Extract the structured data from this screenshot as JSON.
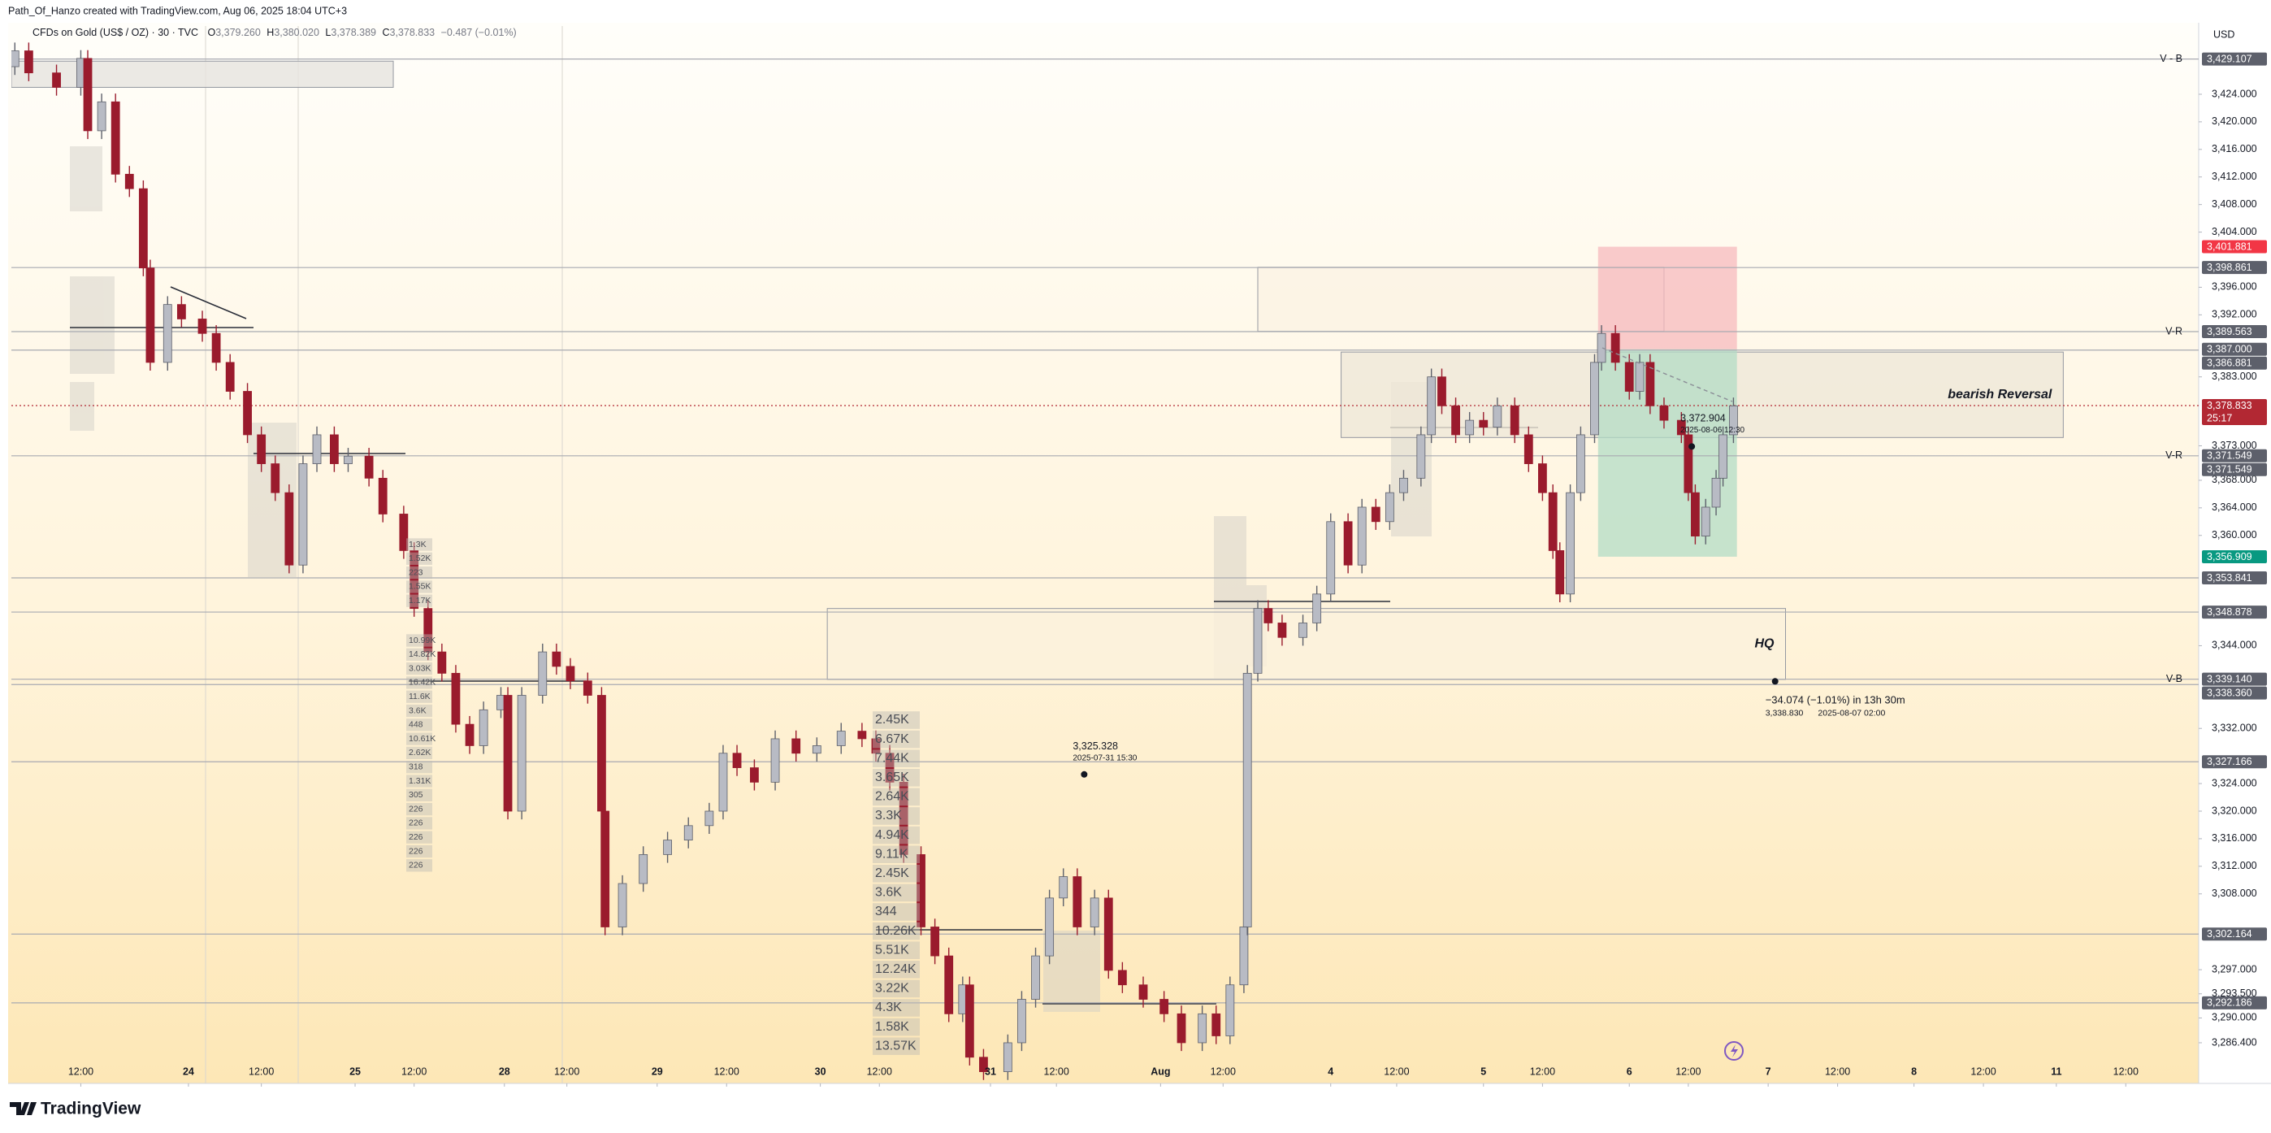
{
  "header": {
    "credit": "Path_Of_Hanzo created with TradingView.com, Aug 06, 2025 18:04 UTC+3",
    "symbol": "CFDs on Gold (US$ / OZ) · 30 · TVC",
    "ohlc": [
      {
        "key": "O",
        "value": "3,379.260"
      },
      {
        "key": "H",
        "value": "3,380.020"
      },
      {
        "key": "L",
        "value": "3,378.389"
      },
      {
        "key": "C",
        "value": "3,378.833"
      }
    ],
    "change": "−0.487 (−0.01%)"
  },
  "chart_data": {
    "type": "candlestick",
    "currency": "USD",
    "up_color": "#b8bbc4",
    "down_color": "#9a1b2d",
    "wick_color": "#5d606b",
    "x": [
      1,
      5,
      13,
      20,
      22,
      26,
      30,
      34,
      38,
      40,
      45,
      49,
      55,
      59,
      63,
      68,
      72,
      76,
      80,
      84,
      88,
      93,
      97,
      103,
      107,
      113,
      116,
      120,
      124,
      128,
      132,
      136,
      141,
      143,
      147,
      153,
      157,
      161,
      166,
      170,
      171,
      176,
      182,
      189,
      195,
      201,
      205,
      209,
      214,
      220,
      226,
      232,
      239,
      245,
      249,
      253,
      257,
      262,
      266,
      270,
      274,
      276,
      280,
      287,
      291,
      295,
      299,
      303,
      307,
      312,
      316,
      320,
      326,
      332,
      337,
      343,
      347,
      351,
      355,
      356,
      359,
      362,
      366,
      372,
      376,
      380,
      385,
      389,
      393,
      397,
      401,
      406,
      409,
      412,
      416,
      420,
      424,
      428,
      433,
      437,
      441,
      444,
      446,
      449,
      452,
      456,
      458,
      462,
      466,
      469,
      472,
      476,
      481,
      483,
      485,
      488,
      491,
      493,
      496
    ],
    "open": [
      3428.0,
      3430.3,
      3427.1,
      3425.0,
      3429.2,
      3418.7,
      3422.9,
      3412.4,
      3410.3,
      3398.8,
      3385.1,
      3393.5,
      3391.4,
      3389.3,
      3385.1,
      3380.9,
      3374.6,
      3370.4,
      3366.2,
      3355.7,
      3370.4,
      3374.6,
      3370.4,
      3371.5,
      3368.3,
      3363.1,
      3357.8,
      3349.4,
      3343.1,
      3340.0,
      3332.6,
      3329.5,
      3334.7,
      3336.8,
      3320.0,
      3336.8,
      3343.1,
      3341.0,
      3338.9,
      3336.8,
      3320.0,
      3303.2,
      3309.5,
      3313.7,
      3315.8,
      3317.9,
      3320.0,
      3328.4,
      3326.3,
      3324.2,
      3330.5,
      3328.4,
      3329.5,
      3331.6,
      3330.5,
      3328.4,
      3324.2,
      3313.7,
      3303.2,
      3299.0,
      3290.6,
      3294.8,
      3284.3,
      3282.2,
      3286.4,
      3292.7,
      3299.0,
      3307.4,
      3310.5,
      3303.2,
      3307.4,
      3296.9,
      3294.8,
      3292.7,
      3290.6,
      3286.4,
      3290.6,
      3287.4,
      3294.8,
      3303.2,
      3340.0,
      3349.4,
      3347.3,
      3345.2,
      3347.3,
      3351.5,
      3362.0,
      3355.7,
      3364.1,
      3362.0,
      3366.2,
      3368.3,
      3374.6,
      3383.0,
      3378.8,
      3374.6,
      3376.7,
      3375.7,
      3378.8,
      3374.6,
      3370.4,
      3366.2,
      3357.8,
      3351.5,
      3366.2,
      3374.6,
      3385.1,
      3389.3,
      3385.1,
      3380.9,
      3385.1,
      3378.8,
      3376.7,
      3374.6,
      3366.2,
      3359.9,
      3364.1,
      3368.3,
      3374.6
    ],
    "high": [
      3431.5,
      3431.5,
      3428.3,
      3430.4,
      3430.4,
      3424.1,
      3424.1,
      3413.6,
      3411.5,
      3400.0,
      3394.7,
      3394.7,
      3392.6,
      3390.5,
      3386.3,
      3382.1,
      3375.8,
      3371.6,
      3367.4,
      3371.6,
      3375.8,
      3375.8,
      3372.7,
      3372.7,
      3369.5,
      3364.3,
      3359.0,
      3350.6,
      3344.3,
      3341.2,
      3333.8,
      3335.9,
      3338.0,
      3338.0,
      3338.0,
      3344.3,
      3344.3,
      3342.2,
      3340.1,
      3338.0,
      3321.2,
      3310.7,
      3314.9,
      3317.0,
      3319.1,
      3321.2,
      3329.6,
      3329.6,
      3327.5,
      3331.7,
      3331.7,
      3330.7,
      3332.8,
      3332.8,
      3331.7,
      3329.6,
      3325.4,
      3314.9,
      3304.4,
      3300.2,
      3296.0,
      3296.0,
      3285.5,
      3287.6,
      3293.9,
      3300.2,
      3308.6,
      3311.7,
      3311.7,
      3308.6,
      3308.6,
      3298.1,
      3296.0,
      3293.9,
      3291.8,
      3291.8,
      3291.8,
      3296.0,
      3304.4,
      3341.2,
      3350.6,
      3350.6,
      3348.5,
      3348.5,
      3352.7,
      3363.2,
      3363.2,
      3365.3,
      3365.3,
      3367.4,
      3369.5,
      3375.8,
      3384.2,
      3384.2,
      3380.0,
      3377.9,
      3377.9,
      3380.0,
      3380.0,
      3375.8,
      3371.6,
      3367.4,
      3359.0,
      3367.4,
      3375.8,
      3386.3,
      3390.5,
      3390.5,
      3386.3,
      3386.3,
      3386.3,
      3380.0,
      3377.9,
      3375.8,
      3367.4,
      3365.3,
      3369.5,
      3375.8,
      3380.0
    ],
    "low": [
      3426.8,
      3425.9,
      3423.8,
      3423.8,
      3417.5,
      3417.5,
      3411.2,
      3409.1,
      3397.6,
      3383.9,
      3383.9,
      3390.2,
      3388.1,
      3383.9,
      3379.7,
      3373.4,
      3369.2,
      3365.0,
      3354.5,
      3354.5,
      3369.2,
      3369.2,
      3369.2,
      3367.1,
      3361.9,
      3356.6,
      3348.2,
      3341.9,
      3338.8,
      3331.4,
      3328.3,
      3328.3,
      3333.5,
      3318.8,
      3318.8,
      3335.6,
      3339.8,
      3337.7,
      3335.6,
      3318.8,
      3302.0,
      3302.0,
      3308.3,
      3312.5,
      3314.6,
      3316.7,
      3318.8,
      3325.1,
      3323.0,
      3323.0,
      3327.2,
      3327.2,
      3328.3,
      3329.3,
      3327.2,
      3323.0,
      3312.5,
      3302.0,
      3297.8,
      3289.4,
      3289.4,
      3283.1,
      3281.0,
      3281.0,
      3285.2,
      3291.5,
      3297.8,
      3306.2,
      3302.0,
      3302.0,
      3295.7,
      3293.6,
      3291.5,
      3289.4,
      3285.2,
      3285.2,
      3286.2,
      3286.2,
      3293.6,
      3302.0,
      3338.8,
      3346.1,
      3344.0,
      3344.0,
      3346.1,
      3350.3,
      3354.5,
      3354.5,
      3360.8,
      3360.8,
      3365.0,
      3367.1,
      3373.4,
      3377.6,
      3373.4,
      3373.4,
      3374.5,
      3374.5,
      3373.4,
      3369.2,
      3365.0,
      3356.6,
      3350.3,
      3350.3,
      3365.0,
      3373.4,
      3383.9,
      3383.9,
      3379.7,
      3379.7,
      3377.6,
      3375.5,
      3373.4,
      3365.0,
      3358.7,
      3358.7,
      3362.9,
      3367.1,
      3373.4
    ],
    "close": [
      3430.3,
      3427.1,
      3425.0,
      3429.2,
      3418.7,
      3422.9,
      3412.4,
      3410.3,
      3398.8,
      3385.1,
      3393.5,
      3391.4,
      3389.3,
      3385.1,
      3380.9,
      3374.6,
      3370.4,
      3366.2,
      3355.7,
      3370.4,
      3374.6,
      3370.4,
      3371.5,
      3368.3,
      3363.1,
      3357.8,
      3349.4,
      3343.1,
      3340.0,
      3332.6,
      3329.5,
      3334.7,
      3336.8,
      3320.0,
      3336.8,
      3343.1,
      3341.0,
      3338.9,
      3336.8,
      3320.0,
      3303.2,
      3309.5,
      3313.7,
      3315.8,
      3317.9,
      3320.0,
      3328.4,
      3326.3,
      3324.2,
      3330.5,
      3328.4,
      3329.5,
      3331.6,
      3330.5,
      3328.4,
      3324.2,
      3313.7,
      3303.2,
      3299.0,
      3290.6,
      3294.8,
      3284.3,
      3282.2,
      3286.4,
      3292.7,
      3299.0,
      3307.4,
      3310.5,
      3303.2,
      3307.4,
      3296.9,
      3294.8,
      3292.7,
      3290.6,
      3286.4,
      3290.6,
      3287.4,
      3294.8,
      3303.2,
      3340.0,
      3349.4,
      3347.3,
      3345.2,
      3347.3,
      3351.5,
      3362.0,
      3355.7,
      3364.1,
      3362.0,
      3366.2,
      3368.3,
      3374.6,
      3383.0,
      3378.8,
      3374.6,
      3376.7,
      3375.7,
      3378.8,
      3374.6,
      3370.4,
      3366.2,
      3357.8,
      3351.5,
      3366.2,
      3374.6,
      3385.1,
      3389.3,
      3385.1,
      3380.9,
      3385.1,
      3378.8,
      3376.7,
      3374.6,
      3366.2,
      3359.9,
      3364.1,
      3368.3,
      3374.6,
      3378.8
    ],
    "xlim": [
      0,
      630
    ],
    "xticks": [
      {
        "value": 20,
        "label": "12:00"
      },
      {
        "value": 51,
        "label": "24"
      },
      {
        "value": 72,
        "label": "12:00"
      },
      {
        "value": 99,
        "label": "25"
      },
      {
        "value": 116,
        "label": "12:00"
      },
      {
        "value": 142,
        "label": "28"
      },
      {
        "value": 160,
        "label": "12:00"
      },
      {
        "value": 186,
        "label": "29"
      },
      {
        "value": 206,
        "label": "12:00"
      },
      {
        "value": 233,
        "label": "30"
      },
      {
        "value": 250,
        "label": "12:00"
      },
      {
        "value": 282,
        "label": "31"
      },
      {
        "value": 301,
        "label": "12:00"
      },
      {
        "value": 331,
        "label": "Aug"
      },
      {
        "value": 349,
        "label": "12:00"
      },
      {
        "value": 380,
        "label": "4"
      },
      {
        "value": 399,
        "label": "12:00"
      },
      {
        "value": 424,
        "label": "5"
      },
      {
        "value": 441,
        "label": "12:00"
      },
      {
        "value": 466,
        "label": "6"
      },
      {
        "value": 483,
        "label": "12:00"
      },
      {
        "value": 506,
        "label": "7"
      },
      {
        "value": 526,
        "label": "12:00"
      },
      {
        "value": 548,
        "label": "8"
      },
      {
        "value": 568,
        "label": "12:00"
      },
      {
        "value": 589,
        "label": "11"
      },
      {
        "value": 609,
        "label": "12:00"
      }
    ],
    "ylim": [
      3280.5,
      3433.9
    ],
    "yticks": [
      {
        "value": 3424,
        "label": "3,424.000"
      },
      {
        "value": 3420,
        "label": "3,420.000"
      },
      {
        "value": 3416,
        "label": "3,416.000"
      },
      {
        "value": 3412,
        "label": "3,412.000"
      },
      {
        "value": 3408,
        "label": "3,408.000"
      },
      {
        "value": 3404,
        "label": "3,404.000"
      },
      {
        "value": 3396,
        "label": "3,396.000"
      },
      {
        "value": 3392,
        "label": "3,392.000"
      },
      {
        "value": 3383,
        "label": "3,383.000"
      },
      {
        "value": 3373,
        "label": "3,373.000"
      },
      {
        "value": 3368,
        "label": "3,368.000"
      },
      {
        "value": 3364,
        "label": "3,364.000"
      },
      {
        "value": 3360,
        "label": "3,360.000"
      },
      {
        "value": 3344,
        "label": "3,344.000"
      },
      {
        "value": 3332,
        "label": "3,332.000"
      },
      {
        "value": 3324,
        "label": "3,324.000"
      },
      {
        "value": 3320,
        "label": "3,320.000"
      },
      {
        "value": 3316,
        "label": "3,316.000"
      },
      {
        "value": 3312,
        "label": "3,312.000"
      },
      {
        "value": 3308,
        "label": "3,308.000"
      },
      {
        "value": 3297,
        "label": "3,297.000"
      },
      {
        "value": 3293.5,
        "label": "3,293.500"
      },
      {
        "value": 3290,
        "label": "3,290.000"
      },
      {
        "value": 3286.4,
        "label": "3,286.400"
      }
    ],
    "price_labels": [
      {
        "value": 3429.107,
        "label": "3,429.107",
        "color": "#5d606b",
        "line": true,
        "tag": "V - B"
      },
      {
        "value": 3401.881,
        "label": "3,401.881",
        "color": "#f23645"
      },
      {
        "value": 3398.861,
        "label": "3,398.861",
        "color": "#5d606b",
        "line": true
      },
      {
        "value": 3389.563,
        "label": "3,389.563",
        "color": "#5d606b",
        "line": true,
        "tag": "V-R"
      },
      {
        "value": 3387.0,
        "label": "3,387.000",
        "color": "#5d606b"
      },
      {
        "value": 3386.881,
        "label": "3,386.881",
        "color": "#5d606b",
        "line": true
      },
      {
        "value": 3378.833,
        "label": "3,378.833",
        "color": "#b22833",
        "line": true,
        "countdown": "25:17"
      },
      {
        "value": 3371.549,
        "label": "3,371.549",
        "color": "#5d606b",
        "line": true,
        "tag": "V-R"
      },
      {
        "value": 3371.549,
        "label": "3,371.549",
        "color": "#5d606b"
      },
      {
        "value": 3356.909,
        "label": "3,356.909",
        "color": "#089981"
      },
      {
        "value": 3353.841,
        "label": "3,353.841",
        "color": "#5d606b",
        "line": true
      },
      {
        "value": 3348.878,
        "label": "3,348.878",
        "color": "#5d606b",
        "line": true
      },
      {
        "value": 3339.14,
        "label": "3,339.140",
        "color": "#5d606b",
        "line": true,
        "tag": "V-B"
      },
      {
        "value": 3338.36,
        "label": "3,338.360",
        "color": "#5d606b",
        "line": true
      },
      {
        "value": 3327.166,
        "label": "3,327.166",
        "color": "#5d606b",
        "line": true
      },
      {
        "value": 3302.164,
        "label": "3,302.164",
        "color": "#5d606b",
        "line": true
      },
      {
        "value": 3292.186,
        "label": "3,292.186",
        "color": "#5d606b",
        "line": true
      }
    ],
    "zones": [
      {
        "x": [
          0,
          110
        ],
        "y": [
          3425.0,
          3428.8
        ],
        "color": "#e6e4de"
      },
      {
        "x": [
          359,
          476
        ],
        "y": [
          3389.6,
          3398.9
        ],
        "color": "#fbf3e4"
      },
      {
        "x": [
          383,
          591
        ],
        "y": [
          3374.2,
          3386.6
        ],
        "color": "#efe7d8",
        "label": "bearish Reversal"
      },
      {
        "x": [
          235,
          511
        ],
        "y": [
          3339.1,
          3349.4
        ],
        "color": "#fbf1dc",
        "label": "HQ"
      }
    ],
    "trade_zones": [
      {
        "x": [
          457,
          497
        ],
        "y": [
          3387.0,
          3401.881
        ],
        "color": "#f7b9bd"
      },
      {
        "x": [
          457,
          497
        ],
        "y": [
          3356.909,
          3387.0
        ],
        "color": "#b3dcc5"
      }
    ],
    "annotations": [
      {
        "x": 484,
        "value": 3372.904,
        "label": "3,372.904",
        "time": "2025-08-06 12:30"
      },
      {
        "x": 309,
        "value": 3325.328,
        "label": "3,325.328",
        "time": "2025-07-31 15:30"
      },
      {
        "x": 508,
        "value": 3338.83,
        "label": "3,338.830",
        "time": "2025-08-07  02:00",
        "measure": "−34.074 (−1.01%) in 13h 30m"
      }
    ],
    "volume_profiles": [
      {
        "labels": [
          "1.3K",
          "1.52K",
          "223",
          "1.55K",
          "1.17K"
        ]
      },
      {
        "labels": [
          "10.99K",
          "14.82K",
          "3.03K",
          "16.42K",
          "11.6K",
          "3.6K",
          "448",
          "10.61K",
          "2.62K",
          "318",
          "1.31K",
          "305",
          "226",
          "226",
          "226",
          "226",
          "226"
        ]
      },
      {
        "labels": [
          "2.45K",
          "6.67K",
          "7.44K",
          "3.65K",
          "2.64K",
          "3.3K",
          "4.94K",
          "9.11K",
          "2.45K",
          "3.6K",
          "344",
          "10.26K",
          "5.51K",
          "12.24K",
          "3.22K",
          "4.3K",
          "1.58K",
          "13.57K"
        ]
      }
    ]
  },
  "footer": {
    "brand": "TradingView"
  }
}
